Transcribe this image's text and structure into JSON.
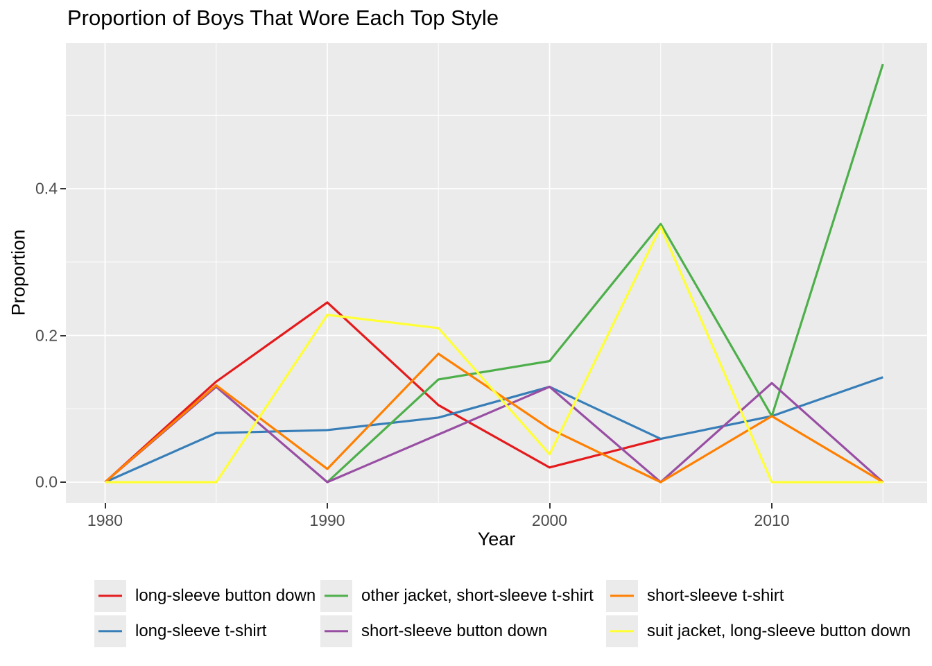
{
  "title": "Proportion of Boys That Wore Each Top Style",
  "chart_data": {
    "type": "line",
    "title": "Proportion of Boys That Wore Each Top Style",
    "xlabel": "Year",
    "ylabel": "Proportion",
    "x": [
      1980,
      1985,
      1990,
      1995,
      2000,
      2005,
      2010,
      2015
    ],
    "xlim": [
      1978.25,
      2016.75
    ],
    "ylim": [
      -0.031,
      0.594
    ],
    "x_ticks": {
      "major": [
        1980,
        1990,
        2000,
        2010
      ],
      "labels": [
        "1980",
        "1990",
        "2000",
        "2010"
      ],
      "minor": [
        1985,
        1995,
        2005,
        2015
      ]
    },
    "y_ticks": {
      "major": [
        0.0,
        0.2,
        0.4
      ],
      "labels": [
        "0.0",
        "0.2",
        "0.4"
      ],
      "minor": [
        0.1,
        0.3,
        0.5
      ]
    },
    "grid": "on",
    "legend_position": "bottom",
    "panel_bg": "#ebebeb",
    "grid_color": "#ffffff",
    "tick_label_color": "#4d4d4d",
    "series": [
      {
        "name": "long-sleeve button down",
        "color": "#e41a1c",
        "values": [
          0,
          0.137,
          0.245,
          0.105,
          0.02,
          0.059,
          null,
          null
        ]
      },
      {
        "name": "long-sleeve t-shirt",
        "color": "#377eb8",
        "values": [
          0,
          0.067,
          0.071,
          0.088,
          0.13,
          0.059,
          0.09,
          0.143
        ]
      },
      {
        "name": "other jacket, short-sleeve t-shirt",
        "color": "#4daf4a",
        "values": [
          null,
          null,
          0,
          0.14,
          0.165,
          0.352,
          0.09,
          0.57
        ]
      },
      {
        "name": "short-sleeve button down",
        "color": "#984ea3",
        "values": [
          0,
          0.13,
          0,
          0.065,
          0.13,
          0,
          0.135,
          0
        ]
      },
      {
        "name": "short-sleeve t-shirt",
        "color": "#ff7f00",
        "values": [
          0,
          0.132,
          0.018,
          0.175,
          0.073,
          0,
          0.09,
          0
        ]
      },
      {
        "name": "suit jacket, long-sleeve button down",
        "color": "#ffff33",
        "values": [
          0,
          0,
          0.228,
          0.21,
          0.038,
          0.348,
          0,
          0
        ]
      }
    ]
  }
}
